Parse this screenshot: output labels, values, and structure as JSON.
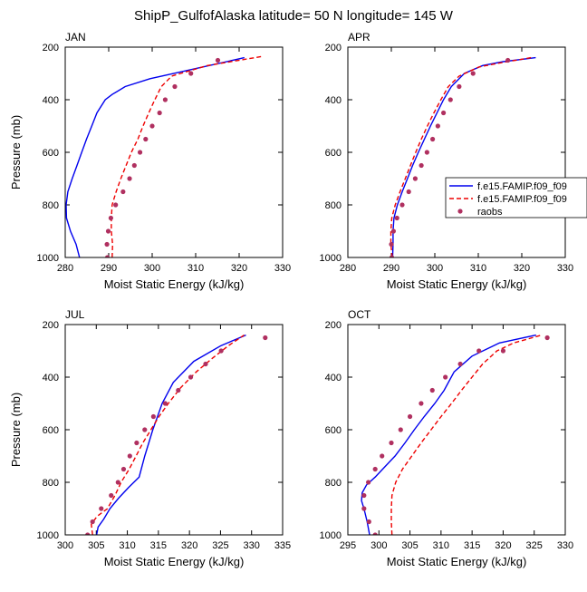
{
  "title": "ShipP_GulfofAlaska  latitude= 50 N longitude= 145 W",
  "colors": {
    "model1": "#0000ee",
    "model2": "#ee0000",
    "raobs": "#b03060"
  },
  "legend": {
    "entries": [
      "f.e15.FAMIP.f09_f09",
      "f.e15.FAMIP.f09_f09",
      "raobs"
    ],
    "placement": "right of APR panel"
  },
  "chart_data": [
    {
      "type": "line",
      "panel": "JAN",
      "xlabel": "Moist Static Energy (kJ/kg)",
      "ylabel": "Pressure (mb)",
      "xlim": [
        280,
        330
      ],
      "ylim": [
        1000,
        200
      ],
      "xticks": [
        280,
        290,
        300,
        310,
        320,
        330
      ],
      "yticks": [
        200,
        400,
        600,
        800,
        1000
      ],
      "series": [
        {
          "name": "f.e15.FAMIP.f09_f09",
          "style": "solid",
          "color": "#0000ee",
          "points": [
            [
              283.3,
              1000
            ],
            [
              282.5,
              950
            ],
            [
              281.2,
              900
            ],
            [
              280.3,
              850
            ],
            [
              280.2,
              800
            ],
            [
              280.6,
              750
            ],
            [
              281.6,
              700
            ],
            [
              282.7,
              650
            ],
            [
              283.8,
              600
            ],
            [
              284.9,
              550
            ],
            [
              286.1,
              500
            ],
            [
              287.3,
              450
            ],
            [
              289.2,
              400
            ],
            [
              290.8,
              380
            ],
            [
              293.8,
              350
            ],
            [
              299.5,
              320
            ],
            [
              311.7,
              275
            ],
            [
              321.2,
              240
            ]
          ]
        },
        {
          "name": "f.e15.FAMIP.f09_f09",
          "style": "dashed",
          "color": "#ee0000",
          "points": [
            [
              290.8,
              1000
            ],
            [
              290.9,
              950
            ],
            [
              290.6,
              900
            ],
            [
              290.6,
              850
            ],
            [
              290.8,
              800
            ],
            [
              291.7,
              750
            ],
            [
              292.8,
              700
            ],
            [
              294.0,
              650
            ],
            [
              295.2,
              600
            ],
            [
              296.7,
              550
            ],
            [
              297.9,
              500
            ],
            [
              299.2,
              450
            ],
            [
              300.6,
              400
            ],
            [
              302.1,
              350
            ],
            [
              304.5,
              310
            ],
            [
              312.7,
              270
            ],
            [
              325.5,
              235
            ]
          ]
        },
        {
          "name": "raobs",
          "style": "markers",
          "color": "#b03060",
          "points": [
            [
              289.7,
              1000
            ],
            [
              289.6,
              950
            ],
            [
              289.9,
              900
            ],
            [
              290.5,
              850
            ],
            [
              291.6,
              800
            ],
            [
              293.3,
              750
            ],
            [
              294.8,
              700
            ],
            [
              295.9,
              650
            ],
            [
              297.2,
              600
            ],
            [
              298.5,
              550
            ],
            [
              300.0,
              500
            ],
            [
              301.7,
              450
            ],
            [
              303.0,
              400
            ],
            [
              305.2,
              350
            ],
            [
              308.9,
              300
            ],
            [
              315.1,
              250
            ]
          ]
        }
      ]
    },
    {
      "type": "line",
      "panel": "APR",
      "xlabel": "Moist Static Energy (kJ/kg)",
      "ylabel": "",
      "xlim": [
        280,
        330
      ],
      "ylim": [
        1000,
        200
      ],
      "xticks": [
        280,
        290,
        300,
        310,
        320,
        330
      ],
      "yticks": [
        200,
        400,
        600,
        800,
        1000
      ],
      "series": [
        {
          "name": "f.e15.FAMIP.f09_f09",
          "style": "solid",
          "color": "#0000ee",
          "points": [
            [
              290.3,
              1000
            ],
            [
              290.4,
              950
            ],
            [
              290.4,
              900
            ],
            [
              290.6,
              850
            ],
            [
              291.4,
              800
            ],
            [
              292.5,
              750
            ],
            [
              293.7,
              700
            ],
            [
              294.9,
              650
            ],
            [
              296.2,
              600
            ],
            [
              297.6,
              550
            ],
            [
              299.0,
              500
            ],
            [
              300.5,
              450
            ],
            [
              302.0,
              400
            ],
            [
              303.8,
              350
            ],
            [
              306.8,
              300
            ],
            [
              311.0,
              270
            ],
            [
              315.7,
              255
            ],
            [
              323.2,
              240
            ]
          ]
        },
        {
          "name": "f.e15.FAMIP.f09_f09",
          "style": "dashed",
          "color": "#ee0000",
          "points": [
            [
              290.2,
              1000
            ],
            [
              289.9,
              950
            ],
            [
              289.9,
              900
            ],
            [
              290.1,
              850
            ],
            [
              290.9,
              800
            ],
            [
              292.0,
              750
            ],
            [
              293.2,
              700
            ],
            [
              294.4,
              650
            ],
            [
              295.6,
              600
            ],
            [
              296.9,
              550
            ],
            [
              298.3,
              500
            ],
            [
              299.8,
              450
            ],
            [
              301.4,
              400
            ],
            [
              303.1,
              350
            ],
            [
              305.6,
              310
            ],
            [
              310.2,
              275
            ],
            [
              315.0,
              260
            ],
            [
              322.1,
              240
            ]
          ]
        },
        {
          "name": "raobs",
          "style": "markers",
          "color": "#b03060",
          "points": [
            [
              290.1,
              1000
            ],
            [
              290.0,
              950
            ],
            [
              290.5,
              900
            ],
            [
              291.3,
              850
            ],
            [
              292.5,
              800
            ],
            [
              294.0,
              750
            ],
            [
              295.5,
              700
            ],
            [
              296.9,
              650
            ],
            [
              298.2,
              600
            ],
            [
              299.5,
              550
            ],
            [
              300.7,
              500
            ],
            [
              302.0,
              450
            ],
            [
              303.6,
              400
            ],
            [
              305.6,
              350
            ],
            [
              308.8,
              300
            ],
            [
              316.8,
              250
            ]
          ]
        }
      ]
    },
    {
      "type": "line",
      "panel": "JUL",
      "xlabel": "Moist Static Energy (kJ/kg)",
      "ylabel": "Pressure (mb)",
      "xlim": [
        300,
        335
      ],
      "ylim": [
        1000,
        200
      ],
      "xticks": [
        300,
        305,
        310,
        315,
        320,
        325,
        330,
        335
      ],
      "yticks": [
        200,
        400,
        600,
        800,
        1000
      ],
      "series": [
        {
          "name": "f.e15.FAMIP.f09_f09",
          "style": "solid",
          "color": "#0000ee",
          "points": [
            [
              304.9,
              1020
            ],
            [
              305.3,
              970
            ],
            [
              306.2,
              940
            ],
            [
              307.2,
              900
            ],
            [
              308.6,
              860
            ],
            [
              310.2,
              820
            ],
            [
              311.9,
              780
            ],
            [
              312.8,
              700
            ],
            [
              314.1,
              600
            ],
            [
              315.6,
              500
            ],
            [
              317.4,
              420
            ],
            [
              320.7,
              340
            ],
            [
              325.1,
              280
            ],
            [
              329.1,
              240
            ]
          ]
        },
        {
          "name": "f.e15.FAMIP.f09_f09",
          "style": "dashed",
          "color": "#ee0000",
          "points": [
            [
              304.4,
              1000
            ],
            [
              304.2,
              960
            ],
            [
              305.1,
              930
            ],
            [
              306.8,
              900
            ],
            [
              308.0,
              850
            ],
            [
              309.0,
              800
            ],
            [
              310.3,
              750
            ],
            [
              311.4,
              700
            ],
            [
              312.5,
              650
            ],
            [
              313.8,
              600
            ],
            [
              315.1,
              550
            ],
            [
              316.6,
              500
            ],
            [
              318.6,
              440
            ],
            [
              321.1,
              380
            ],
            [
              323.6,
              330
            ],
            [
              326.3,
              280
            ],
            [
              328.8,
              240
            ]
          ]
        },
        {
          "name": "raobs",
          "style": "markers",
          "color": "#b03060",
          "points": [
            [
              303.6,
              1000
            ],
            [
              304.4,
              950
            ],
            [
              305.8,
              900
            ],
            [
              307.4,
              850
            ],
            [
              308.5,
              800
            ],
            [
              309.4,
              750
            ],
            [
              310.4,
              700
            ],
            [
              311.5,
              650
            ],
            [
              312.8,
              600
            ],
            [
              314.2,
              550
            ],
            [
              316.1,
              500
            ],
            [
              318.2,
              450
            ],
            [
              320.2,
              400
            ],
            [
              322.6,
              350
            ],
            [
              325.1,
              300
            ],
            [
              332.2,
              250
            ]
          ]
        }
      ]
    },
    {
      "type": "line",
      "panel": "OCT",
      "xlabel": "Moist Static Energy (kJ/kg)",
      "ylabel": "",
      "xlim": [
        295,
        330
      ],
      "ylim": [
        1000,
        200
      ],
      "xticks": [
        295,
        300,
        305,
        310,
        315,
        320,
        325,
        330
      ],
      "yticks": [
        200,
        400,
        600,
        800,
        1000
      ],
      "series": [
        {
          "name": "f.e15.FAMIP.f09_f09",
          "style": "solid",
          "color": "#0000ee",
          "points": [
            [
              298.5,
              1000
            ],
            [
              298.1,
              950
            ],
            [
              297.6,
              900
            ],
            [
              297.2,
              870
            ],
            [
              297.3,
              840
            ],
            [
              298.0,
              810
            ],
            [
              299.4,
              780
            ],
            [
              301.0,
              740
            ],
            [
              302.6,
              700
            ],
            [
              304.2,
              650
            ],
            [
              305.7,
              600
            ],
            [
              307.3,
              550
            ],
            [
              309.0,
              500
            ],
            [
              310.5,
              450
            ],
            [
              312.1,
              380
            ],
            [
              315.0,
              320
            ],
            [
              319.4,
              270
            ],
            [
              325.3,
              240
            ]
          ]
        },
        {
          "name": "f.e15.FAMIP.f09_f09",
          "style": "dashed",
          "color": "#ee0000",
          "points": [
            [
              302.1,
              1000
            ],
            [
              302.0,
              950
            ],
            [
              302.0,
              900
            ],
            [
              302.1,
              850
            ],
            [
              302.7,
              800
            ],
            [
              303.8,
              750
            ],
            [
              305.3,
              700
            ],
            [
              306.8,
              650
            ],
            [
              308.4,
              600
            ],
            [
              310.0,
              550
            ],
            [
              311.7,
              500
            ],
            [
              313.3,
              450
            ],
            [
              315.0,
              400
            ],
            [
              316.7,
              350
            ],
            [
              319.0,
              300
            ],
            [
              321.7,
              270
            ],
            [
              326.2,
              240
            ]
          ]
        },
        {
          "name": "raobs",
          "style": "markers",
          "color": "#b03060",
          "points": [
            [
              299.4,
              1000
            ],
            [
              298.4,
              950
            ],
            [
              297.6,
              900
            ],
            [
              297.6,
              850
            ],
            [
              298.3,
              800
            ],
            [
              299.4,
              750
            ],
            [
              300.5,
              700
            ],
            [
              302.0,
              650
            ],
            [
              303.5,
              600
            ],
            [
              305.0,
              550
            ],
            [
              306.8,
              500
            ],
            [
              308.6,
              450
            ],
            [
              310.7,
              400
            ],
            [
              313.1,
              350
            ],
            [
              316.1,
              300
            ],
            [
              320.0,
              300
            ],
            [
              327.1,
              250
            ]
          ]
        }
      ]
    }
  ]
}
